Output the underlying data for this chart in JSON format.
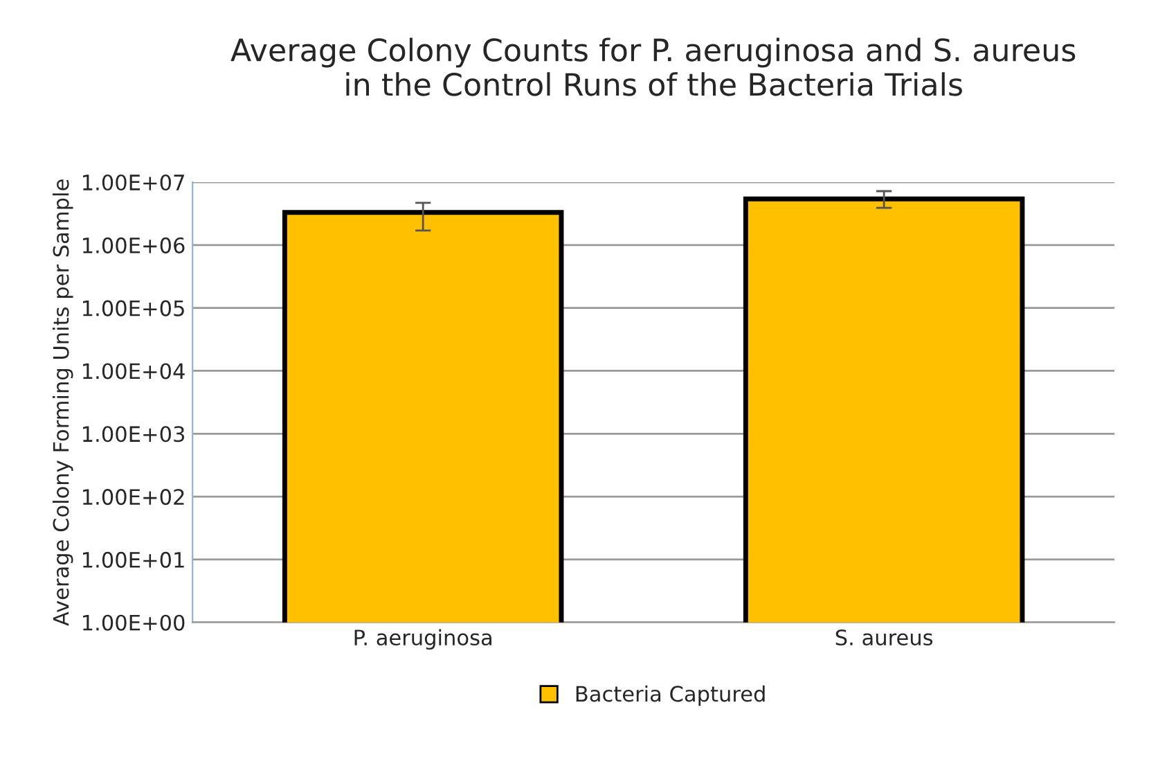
{
  "chart_data": {
    "type": "bar",
    "title": "Average Colony Counts for P. aeruginosa and S. aureus\nin the Control Runs of the Bacteria Trials",
    "ylabel": "Average Colony Forming Units per Sample",
    "categories": [
      "P. aeruginosa",
      "S. aureus"
    ],
    "series": [
      {
        "name": "Bacteria Captured",
        "color": "#ffc000",
        "values": [
          3300000,
          5400000
        ],
        "errors": [
          [
            1700000,
            4700000
          ],
          [
            3900000,
            7200000
          ]
        ]
      }
    ],
    "log": true,
    "ylim": [
      1,
      10000000
    ],
    "yticks": [
      {
        "value": 1,
        "label": "1.00E+00"
      },
      {
        "value": 10,
        "label": "1.00E+01"
      },
      {
        "value": 100,
        "label": "1.00E+02"
      },
      {
        "value": 1000,
        "label": "1.00E+03"
      },
      {
        "value": 10000,
        "label": "1.00E+04"
      },
      {
        "value": 100000,
        "label": "1.00E+05"
      },
      {
        "value": 1000000,
        "label": "1.00E+06"
      },
      {
        "value": 10000000,
        "label": "1.00E+07"
      }
    ],
    "grid": "y",
    "legend": "bottom"
  }
}
